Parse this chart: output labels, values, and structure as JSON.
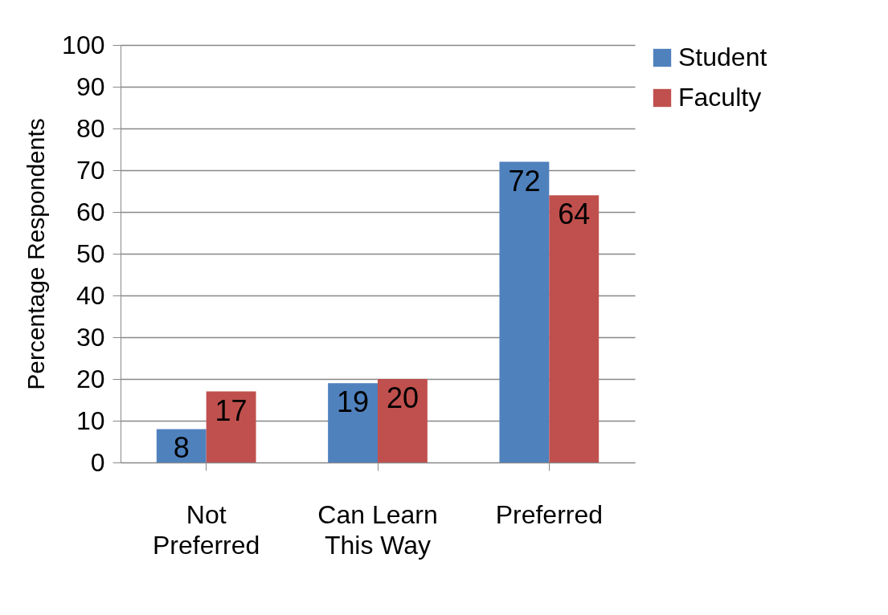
{
  "chart_data": {
    "type": "bar",
    "ylabel": "Percentage Respondents",
    "categories": [
      "Not Preferred",
      "Can Learn This Way",
      "Preferred"
    ],
    "series": [
      {
        "name": "Student",
        "color": "#4f81bd",
        "values": [
          8,
          19,
          72
        ]
      },
      {
        "name": "Faculty",
        "color": "#c0504d",
        "values": [
          17,
          20,
          64
        ]
      }
    ],
    "ylim": [
      0,
      100
    ],
    "yticks": [
      0,
      10,
      20,
      30,
      40,
      50,
      60,
      70,
      80,
      90,
      100
    ],
    "grid": "y",
    "legend": "right",
    "data_labels": true
  }
}
